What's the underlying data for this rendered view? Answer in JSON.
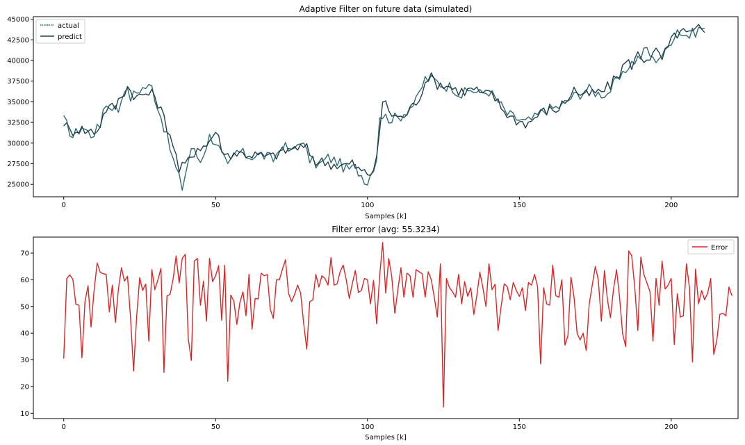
{
  "colors": {
    "actual": "#2f6b74",
    "predict": "#1f3f4a",
    "error": "#d62728"
  },
  "chart_data": [
    {
      "type": "line",
      "title": "Adaptive Filter on future data (simulated)",
      "xlabel": "Samples [k]",
      "ylabel": "",
      "xlim": [
        -10,
        222
      ],
      "ylim": [
        23500,
        45300
      ],
      "xticks": [
        0,
        50,
        100,
        150,
        200
      ],
      "yticks": [
        25000,
        27500,
        30000,
        32500,
        35000,
        37500,
        40000,
        42500,
        45000
      ],
      "legend_position": "top-left",
      "series": [
        {
          "name": "actual",
          "knots": [
            [
              0,
              32800
            ],
            [
              3,
              30800
            ],
            [
              6,
              32000
            ],
            [
              9,
              31000
            ],
            [
              12,
              32000
            ],
            [
              13,
              34500
            ],
            [
              16,
              34500
            ],
            [
              18,
              34000
            ],
            [
              20,
              36800
            ],
            [
              22,
              35500
            ],
            [
              25,
              36500
            ],
            [
              27,
              36800
            ],
            [
              29,
              36800
            ],
            [
              33,
              32000
            ],
            [
              36,
              28000
            ],
            [
              39,
              24600
            ],
            [
              42,
              29500
            ],
            [
              45,
              27800
            ],
            [
              48,
              30800
            ],
            [
              50,
              30200
            ],
            [
              54,
              27000
            ],
            [
              57,
              29000
            ],
            [
              61,
              28400
            ],
            [
              65,
              28600
            ],
            [
              69,
              28000
            ],
            [
              72,
              29800
            ],
            [
              75,
              28800
            ],
            [
              78,
              30500
            ],
            [
              81,
              28000
            ],
            [
              84,
              27300
            ],
            [
              87,
              28200
            ],
            [
              90,
              27800
            ],
            [
              93,
              26800
            ],
            [
              96,
              27000
            ],
            [
              100,
              25300
            ],
            [
              103,
              28200
            ],
            [
              104,
              33500
            ],
            [
              107,
              33000
            ],
            [
              110,
              33000
            ],
            [
              113,
              34000
            ],
            [
              116,
              35000
            ],
            [
              119,
              37800
            ],
            [
              122,
              37600
            ],
            [
              125,
              37000
            ],
            [
              128,
              36800
            ],
            [
              131,
              35800
            ],
            [
              134,
              36500
            ],
            [
              137,
              36000
            ],
            [
              140,
              36300
            ],
            [
              143,
              35000
            ],
            [
              146,
              33500
            ],
            [
              149,
              33000
            ],
            [
              152,
              32500
            ],
            [
              155,
              33000
            ],
            [
              158,
              34000
            ],
            [
              161,
              34200
            ],
            [
              164,
              34500
            ],
            [
              167,
              35500
            ],
            [
              170,
              36000
            ],
            [
              173,
              36500
            ],
            [
              176,
              36000
            ],
            [
              179,
              36000
            ],
            [
              182,
              37500
            ],
            [
              184,
              38000
            ],
            [
              186,
              39500
            ],
            [
              188,
              40000
            ],
            [
              190,
              40500
            ],
            [
              192,
              41500
            ],
            [
              194,
              40000
            ],
            [
              196,
              40500
            ],
            [
              198,
              41000
            ],
            [
              200,
              42500
            ],
            [
              202,
              43800
            ],
            [
              204,
              43200
            ],
            [
              206,
              43000
            ],
            [
              208,
              43500
            ],
            [
              210,
              44000
            ],
            [
              211,
              43900
            ]
          ]
        },
        {
          "name": "predict",
          "knots": [
            [
              0,
              32600
            ],
            [
              2,
              31400
            ],
            [
              5,
              31800
            ],
            [
              8,
              31400
            ],
            [
              11,
              31500
            ],
            [
              14,
              34200
            ],
            [
              17,
              34400
            ],
            [
              19,
              35800
            ],
            [
              21,
              36800
            ],
            [
              24,
              35500
            ],
            [
              27,
              36000
            ],
            [
              30,
              35800
            ],
            [
              33,
              33000
            ],
            [
              36,
              30000
            ],
            [
              38,
              26700
            ],
            [
              41,
              27800
            ],
            [
              44,
              29500
            ],
            [
              47,
              29700
            ],
            [
              50,
              31500
            ],
            [
              53,
              28500
            ],
            [
              56,
              28800
            ],
            [
              60,
              28700
            ],
            [
              64,
              28500
            ],
            [
              68,
              28300
            ],
            [
              71,
              28800
            ],
            [
              74,
              29200
            ],
            [
              77,
              29500
            ],
            [
              80,
              29300
            ],
            [
              83,
              27800
            ],
            [
              86,
              27700
            ],
            [
              89,
              27400
            ],
            [
              92,
              27300
            ],
            [
              95,
              27500
            ],
            [
              98,
              26500
            ],
            [
              101,
              26300
            ],
            [
              103,
              27800
            ],
            [
              105,
              35200
            ],
            [
              108,
              33500
            ],
            [
              111,
              33000
            ],
            [
              114,
              34000
            ],
            [
              117,
              35600
            ],
            [
              120,
              38200
            ],
            [
              123,
              37200
            ],
            [
              126,
              37000
            ],
            [
              129,
              36500
            ],
            [
              132,
              36200
            ],
            [
              135,
              36600
            ],
            [
              138,
              35800
            ],
            [
              141,
              36000
            ],
            [
              144,
              34300
            ],
            [
              147,
              33200
            ],
            [
              150,
              32600
            ],
            [
              153,
              32400
            ],
            [
              156,
              33400
            ],
            [
              159,
              34000
            ],
            [
              162,
              34000
            ],
            [
              165,
              35000
            ],
            [
              168,
              36500
            ],
            [
              171,
              35700
            ],
            [
              174,
              36000
            ],
            [
              177,
              36200
            ],
            [
              180,
              37000
            ],
            [
              183,
              38500
            ],
            [
              185,
              39800
            ],
            [
              187,
              39500
            ],
            [
              189,
              40700
            ],
            [
              191,
              40200
            ],
            [
              193,
              40500
            ],
            [
              195,
              41000
            ],
            [
              197,
              40200
            ],
            [
              199,
              41500
            ],
            [
              201,
              43000
            ],
            [
              203,
              43500
            ],
            [
              205,
              43200
            ],
            [
              207,
              43300
            ],
            [
              209,
              43800
            ],
            [
              211,
              43400
            ]
          ]
        }
      ]
    },
    {
      "type": "line",
      "title": "Filter error (avg: 55.3234)",
      "xlabel": "Samples [k]",
      "ylabel": "",
      "xlim": [
        -10,
        222
      ],
      "ylim": [
        8,
        76
      ],
      "xticks": [
        0,
        50,
        100,
        150,
        200
      ],
      "yticks": [
        10,
        20,
        30,
        40,
        50,
        60,
        70
      ],
      "legend_position": "top-right",
      "series": [
        {
          "name": "Error",
          "values": [
            30.5,
            60.5,
            61.8,
            60.2,
            50.8,
            50.5,
            30.8,
            51.8,
            57.8,
            42.3,
            56.0,
            66.3,
            62.8,
            62.3,
            62.0,
            48.0,
            58.0,
            44.0,
            56.5,
            64.5,
            59.5,
            61.3,
            45.5,
            25.8,
            46.0,
            60.8,
            56.0,
            58.5,
            37.0,
            63.8,
            56.3,
            60.0,
            64.3,
            25.3,
            54.0,
            54.5,
            60.3,
            69.0,
            58.8,
            68.0,
            69.5,
            38.0,
            29.8,
            67.0,
            68.0,
            50.5,
            59.5,
            44.5,
            68.0,
            59.3,
            61.5,
            65.3,
            44.8,
            65.5,
            22.0,
            54.3,
            52.0,
            43.3,
            51.5,
            55.5,
            46.5,
            62.0,
            41.5,
            53.0,
            52.8,
            62.5,
            61.5,
            62.0,
            49.0,
            45.5,
            60.0,
            60.0,
            64.0,
            67.5,
            55.0,
            51.8,
            54.5,
            58.0,
            55.0,
            43.5,
            34.0,
            51.8,
            52.5,
            62.0,
            57.3,
            61.5,
            60.5,
            58.0,
            68.3,
            58.0,
            58.5,
            63.0,
            65.5,
            60.0,
            53.0,
            58.5,
            63.5,
            55.3,
            56.0,
            60.5,
            60.0,
            51.0,
            59.8,
            43.5,
            61.5,
            74.0,
            55.0,
            68.0,
            61.3,
            47.5,
            56.3,
            64.5,
            53.5,
            62.5,
            61.5,
            53.5,
            63.8,
            63.0,
            62.3,
            53.5,
            63.0,
            60.0,
            53.5,
            46.0,
            66.0,
            12.3,
            60.5,
            57.0,
            55.5,
            53.5,
            62.0,
            51.0,
            59.3,
            53.8,
            57.0,
            47.0,
            54.0,
            62.8,
            57.0,
            50.0,
            66.0,
            56.3,
            58.3,
            41.0,
            50.0,
            58.5,
            57.5,
            52.5,
            59.0,
            56.0,
            53.8,
            57.0,
            48.5,
            59.0,
            58.0,
            62.0,
            57.5,
            28.5,
            57.0,
            51.0,
            50.5,
            65.5,
            54.0,
            53.5,
            60.0,
            35.5,
            39.0,
            61.0,
            53.5,
            40.0,
            37.5,
            40.0,
            33.5,
            50.8,
            58.0,
            65.0,
            60.0,
            44.5,
            63.5,
            52.5,
            45.8,
            56.5,
            63.8,
            53.5,
            39.8,
            35.0,
            70.8,
            69.0,
            57.0,
            41.0,
            68.5,
            62.0,
            58.8,
            55.5,
            37.0,
            60.5,
            50.5,
            67.0,
            56.5,
            58.0,
            60.5,
            35.8,
            54.8,
            46.0,
            46.5,
            66.0,
            57.0,
            29.2,
            64.0,
            51.0,
            56.0,
            52.5,
            55.0,
            60.5,
            32.0,
            37.3,
            47.0,
            47.5,
            46.5,
            57.3,
            54.0
          ]
        }
      ]
    }
  ]
}
